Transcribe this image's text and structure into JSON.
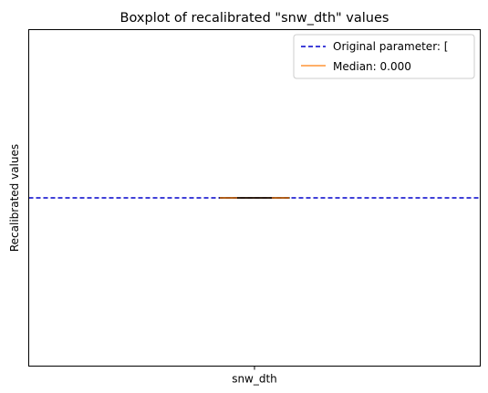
{
  "chart_data": {
    "type": "boxplot",
    "title": "Boxplot of recalibrated \"snw_dth\" values",
    "xlabel": "",
    "ylabel": "Recalibrated values",
    "categories": [
      "snw_dth"
    ],
    "ylim": [
      -0.055,
      0.055
    ],
    "boxes": [
      {
        "category": "snw_dth",
        "q1": 0.0,
        "median": 0.0,
        "q3": 0.0,
        "whisker_low": 0.0,
        "whisker_high": 0.0
      }
    ],
    "reference_line": {
      "label": "Original parameter: [",
      "value": 0.0,
      "color": "#0000cc",
      "style": "dashed"
    },
    "median_line": {
      "label": "Median: 0.000",
      "value": 0.0,
      "color": "#ff7f0e"
    },
    "legend": {
      "placement": "top-right",
      "entries": [
        "Original parameter: [",
        "Median: 0.000"
      ]
    },
    "grid": false
  }
}
